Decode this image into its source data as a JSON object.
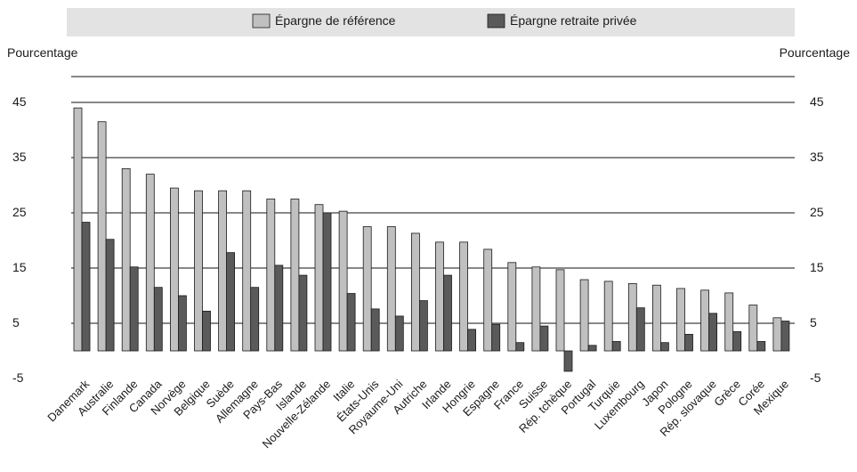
{
  "chart_data": {
    "type": "bar",
    "title": "",
    "xlabel": "",
    "ylabel_left": "Pourcentage",
    "ylabel_right": "Pourcentage",
    "ylim": [
      -5,
      50
    ],
    "yticks": [
      -5,
      5,
      15,
      25,
      35,
      45
    ],
    "grid": true,
    "legend_position": "top",
    "colors": {
      "reference": "#c0c0c0",
      "private": "#5a5a5a"
    },
    "categories": [
      "Danemark",
      "Australie",
      "Finlande",
      "Canada",
      "Norvège",
      "Belgique",
      "Suède",
      "Allemagne",
      "Pays-Bas",
      "Islande",
      "Nouvelle-Zélande",
      "Italie",
      "États-Unis",
      "Royaume-Uni",
      "Autriche",
      "Irlande",
      "Hongrie",
      "Espagne",
      "France",
      "Suisse",
      "Rép. tchèque",
      "Portugal",
      "Turquie",
      "Luxembourg",
      "Japon",
      "Pologne",
      "Rép. slovaque",
      "Grèce",
      "Corée",
      "Mexique"
    ],
    "series": [
      {
        "name": "Épargne de référence",
        "values": [
          44.0,
          41.5,
          33.0,
          32.0,
          29.5,
          29.0,
          29.0,
          29.0,
          27.5,
          27.5,
          26.5,
          25.3,
          22.5,
          22.5,
          21.3,
          19.7,
          19.7,
          18.4,
          16.0,
          15.2,
          14.7,
          12.9,
          12.6,
          12.2,
          11.9,
          11.3,
          11.0,
          10.5,
          8.3,
          6.0
        ]
      },
      {
        "name": "Épargne retraite privée",
        "values": [
          23.3,
          20.2,
          15.2,
          11.5,
          10.0,
          7.2,
          17.8,
          11.5,
          15.5,
          13.7,
          25.0,
          10.4,
          7.6,
          6.3,
          9.1,
          13.7,
          3.9,
          4.8,
          1.5,
          4.5,
          -3.7,
          1.0,
          1.7,
          7.8,
          1.5,
          3.0,
          6.8,
          3.5,
          1.7,
          5.4
        ]
      }
    ]
  }
}
